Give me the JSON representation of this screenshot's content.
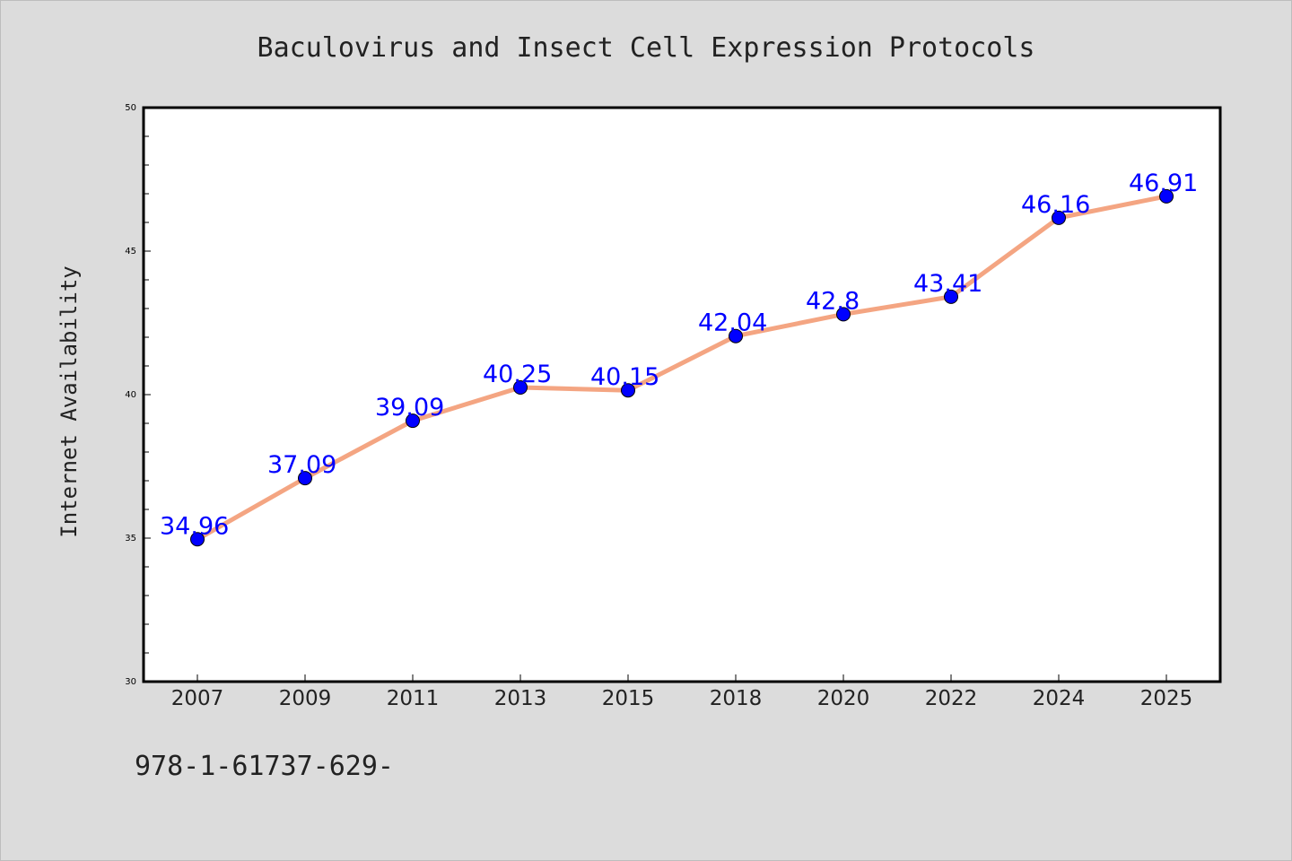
{
  "chart_data": {
    "type": "line",
    "title": "Baculovirus and Insect Cell Expression Protocols",
    "ylabel": "Internet Availability",
    "xlabel": "",
    "categories": [
      "2007",
      "2009",
      "2011",
      "2013",
      "2015",
      "2018",
      "2020",
      "2022",
      "2024",
      "2025"
    ],
    "series": [
      {
        "values": [
          34.96,
          37.09,
          39.09,
          40.25,
          40.15,
          42.04,
          42.8,
          43.41,
          46.16,
          46.91
        ]
      }
    ],
    "data_labels": [
      "34.96",
      "37.09",
      "39.09",
      "40.25",
      "40.15",
      "42.04",
      "42.8",
      "43.41",
      "46.16",
      "46.91"
    ],
    "ylim": [
      30,
      50
    ],
    "yticks": [
      "30",
      "35",
      "40",
      "45",
      "50"
    ],
    "grid": false,
    "legend": "none",
    "footer_text": "978-1-61737-629-",
    "colors": {
      "background": "#dcdcdc",
      "plot_background": "#ffffff",
      "line": "#f4a582",
      "marker": "#0000ff",
      "data_label": "#0000ff",
      "text": "#222222"
    }
  }
}
